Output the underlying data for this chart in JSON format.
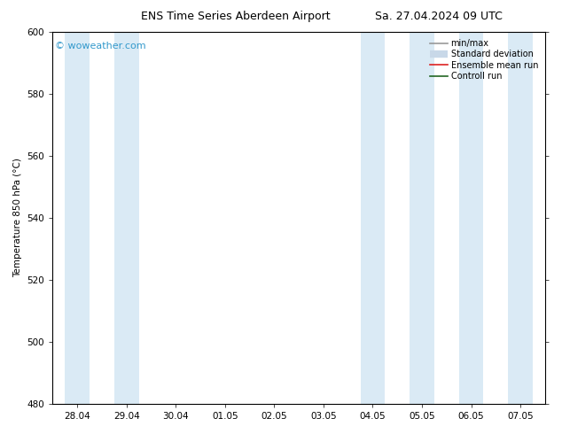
{
  "title_left": "ENS Time Series Aberdeen Airport",
  "title_right": "Sa. 27.04.2024 09 UTC",
  "ylabel": "Temperature 850 hPa (°C)",
  "ylim": [
    480,
    600
  ],
  "yticks": [
    480,
    500,
    520,
    540,
    560,
    580,
    600
  ],
  "xtick_labels": [
    "28.04",
    "29.04",
    "30.04",
    "01.05",
    "02.05",
    "03.05",
    "04.05",
    "05.05",
    "06.05",
    "07.05"
  ],
  "shaded_columns": [
    0,
    1,
    6,
    7,
    8,
    9
  ],
  "shaded_color": "#daeaf5",
  "watermark": "© woweather.com",
  "watermark_color": "#3399cc",
  "legend_items": [
    {
      "label": "min/max",
      "color": "#999999",
      "lw": 1.2
    },
    {
      "label": "Standard deviation",
      "color": "#c8d8e8",
      "lw": 6
    },
    {
      "label": "Ensemble mean run",
      "color": "#dd2222",
      "lw": 1.2
    },
    {
      "label": "Controll run",
      "color": "#226622",
      "lw": 1.2
    }
  ],
  "bg_color": "#ffffff",
  "plot_bg_color": "#ffffff",
  "border_color": "#000000",
  "tick_color": "#000000",
  "title_fontsize": 9,
  "label_fontsize": 7.5,
  "watermark_fontsize": 8
}
